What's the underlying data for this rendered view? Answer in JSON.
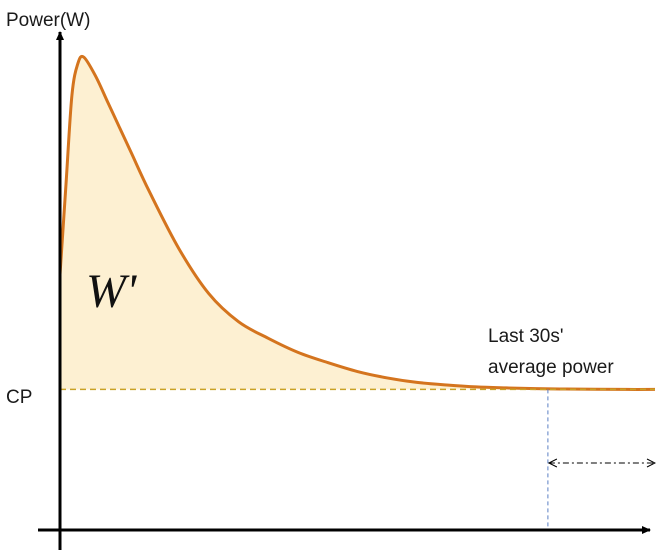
{
  "chart_data": {
    "type": "area",
    "ylabel": "Power(W)",
    "xlabel": "",
    "reference_line": {
      "label": "CP",
      "style": "dashed"
    },
    "area_label": "W'",
    "annotation": {
      "line1": "Last 30s'",
      "line2": "average power"
    },
    "series": [
      {
        "x": [
          0,
          1,
          2,
          3,
          4,
          6,
          8,
          10,
          12,
          15,
          20,
          25,
          30,
          35,
          40,
          45,
          50,
          55,
          60,
          65,
          70,
          75,
          80,
          85,
          90,
          95,
          100
        ],
        "values": [
          0.9,
          1.6,
          2.3,
          2.55,
          2.6,
          2.45,
          2.25,
          2.05,
          1.85,
          1.55,
          1.1,
          0.75,
          0.53,
          0.4,
          0.29,
          0.21,
          0.14,
          0.09,
          0.055,
          0.035,
          0.02,
          0.012,
          0.006,
          0.003,
          0.001,
          0.0,
          0.0
        ]
      }
    ],
    "cp_value": 0,
    "last_window": {
      "start_x": 82,
      "end_x": 100
    },
    "ylim": [
      -1.1,
      2.75
    ],
    "xlim": [
      0,
      100
    ],
    "grid": false,
    "colors": {
      "curve": "#d4741e",
      "fill": "#fdf0d2",
      "cp_line": "#c9a227",
      "axis": "#000000",
      "marker_line": "#5b7fc4",
      "arrow": "#000000"
    }
  }
}
